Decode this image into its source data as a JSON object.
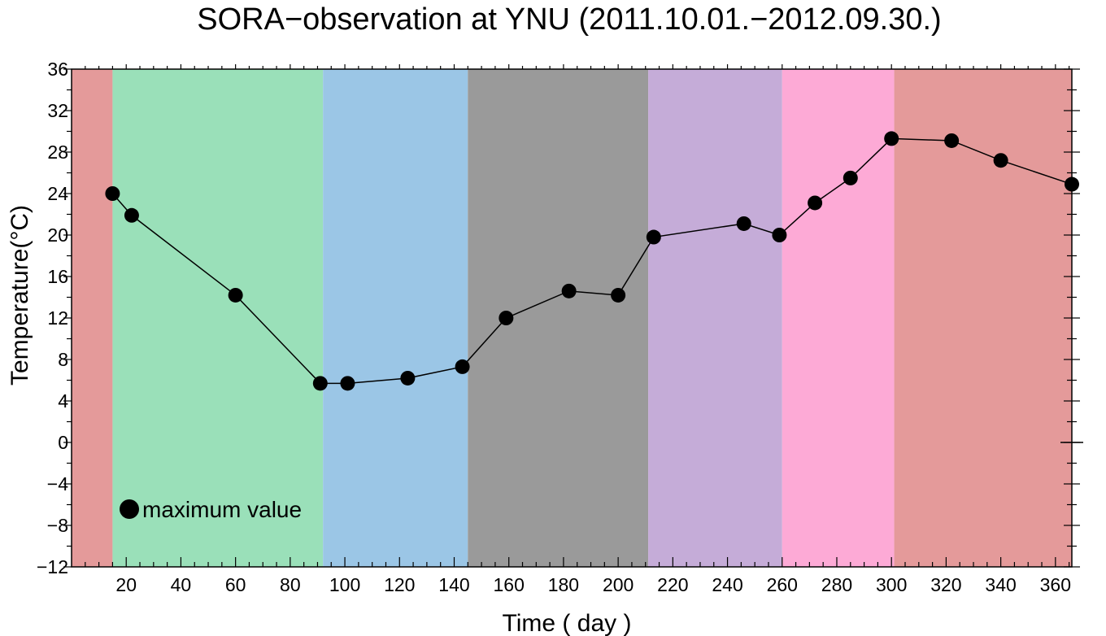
{
  "chart_data": {
    "type": "line",
    "title": "SORA−observation at YNU (2011.10.01.−2012.09.30.)",
    "xlabel": "Time ( day )",
    "ylabel": "Temperature(°C)",
    "xlim": [
      0,
      366
    ],
    "ylim": [
      -12,
      36
    ],
    "x_ticks": [
      20,
      40,
      60,
      80,
      100,
      120,
      140,
      160,
      180,
      200,
      220,
      240,
      260,
      280,
      300,
      320,
      340,
      360
    ],
    "y_ticks": [
      -12,
      -8,
      -4,
      0,
      4,
      8,
      12,
      16,
      20,
      24,
      28,
      32,
      36
    ],
    "y_tick_labels": [
      "−12",
      "−8",
      "−4",
      "0",
      "4",
      "8",
      "12",
      "16",
      "20",
      "24",
      "28",
      "32",
      "36"
    ],
    "grid": false,
    "legend_position": "bottom-left",
    "background_bands": [
      {
        "start": 0,
        "end": 15,
        "color": "#e49a9a"
      },
      {
        "start": 15,
        "end": 92,
        "color": "#9ae0b9"
      },
      {
        "start": 92,
        "end": 145,
        "color": "#9bc6e6"
      },
      {
        "start": 145,
        "end": 211,
        "color": "#9a9a9a"
      },
      {
        "start": 211,
        "end": 260,
        "color": "#c5acd8"
      },
      {
        "start": 260,
        "end": 301,
        "color": "#fdaad6"
      },
      {
        "start": 301,
        "end": 366,
        "color": "#e49a9a"
      }
    ],
    "series": [
      {
        "name": "maximum value",
        "color": "#000000",
        "marker": "circle",
        "x": [
          15,
          22,
          60,
          91,
          101,
          123,
          143,
          159,
          182,
          200,
          213,
          246,
          259,
          272,
          285,
          300,
          322,
          340,
          366
        ],
        "y": [
          24,
          21.9,
          14.2,
          5.7,
          5.7,
          6.2,
          7.3,
          12.0,
          14.6,
          14.2,
          19.8,
          21.1,
          20.0,
          23.1,
          25.5,
          29.3,
          29.1,
          27.2,
          24.9
        ]
      }
    ]
  }
}
